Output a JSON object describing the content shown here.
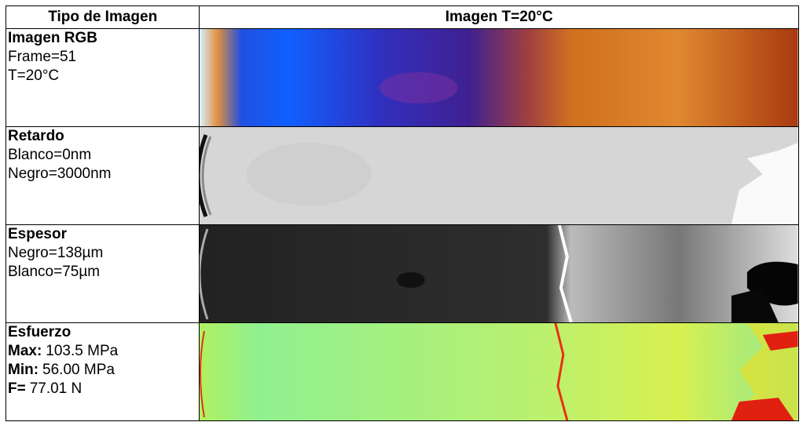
{
  "table": {
    "header": [
      "Tipo de Imagen",
      "Imagen T=20°C"
    ],
    "rows": [
      {
        "title": "Imagen RGB",
        "lines": [
          {
            "text": "Frame=51"
          },
          {
            "text": "T=20°C"
          }
        ]
      },
      {
        "title": "Retardo",
        "lines": [
          {
            "text": "Blanco=0nm"
          },
          {
            "text": "Negro=3000nm"
          }
        ]
      },
      {
        "title": "Espesor",
        "lines": [
          {
            "text": "Negro=138µm"
          },
          {
            "text": "Blanco=75µm"
          }
        ]
      },
      {
        "title": "Esfuerzo",
        "lines": [
          {
            "label": "Max:",
            "text": "103.5 MPa"
          },
          {
            "label": "Min:",
            "text": "56.00 MPa"
          },
          {
            "label": "F=",
            "text": "77.01 N"
          }
        ]
      }
    ]
  }
}
